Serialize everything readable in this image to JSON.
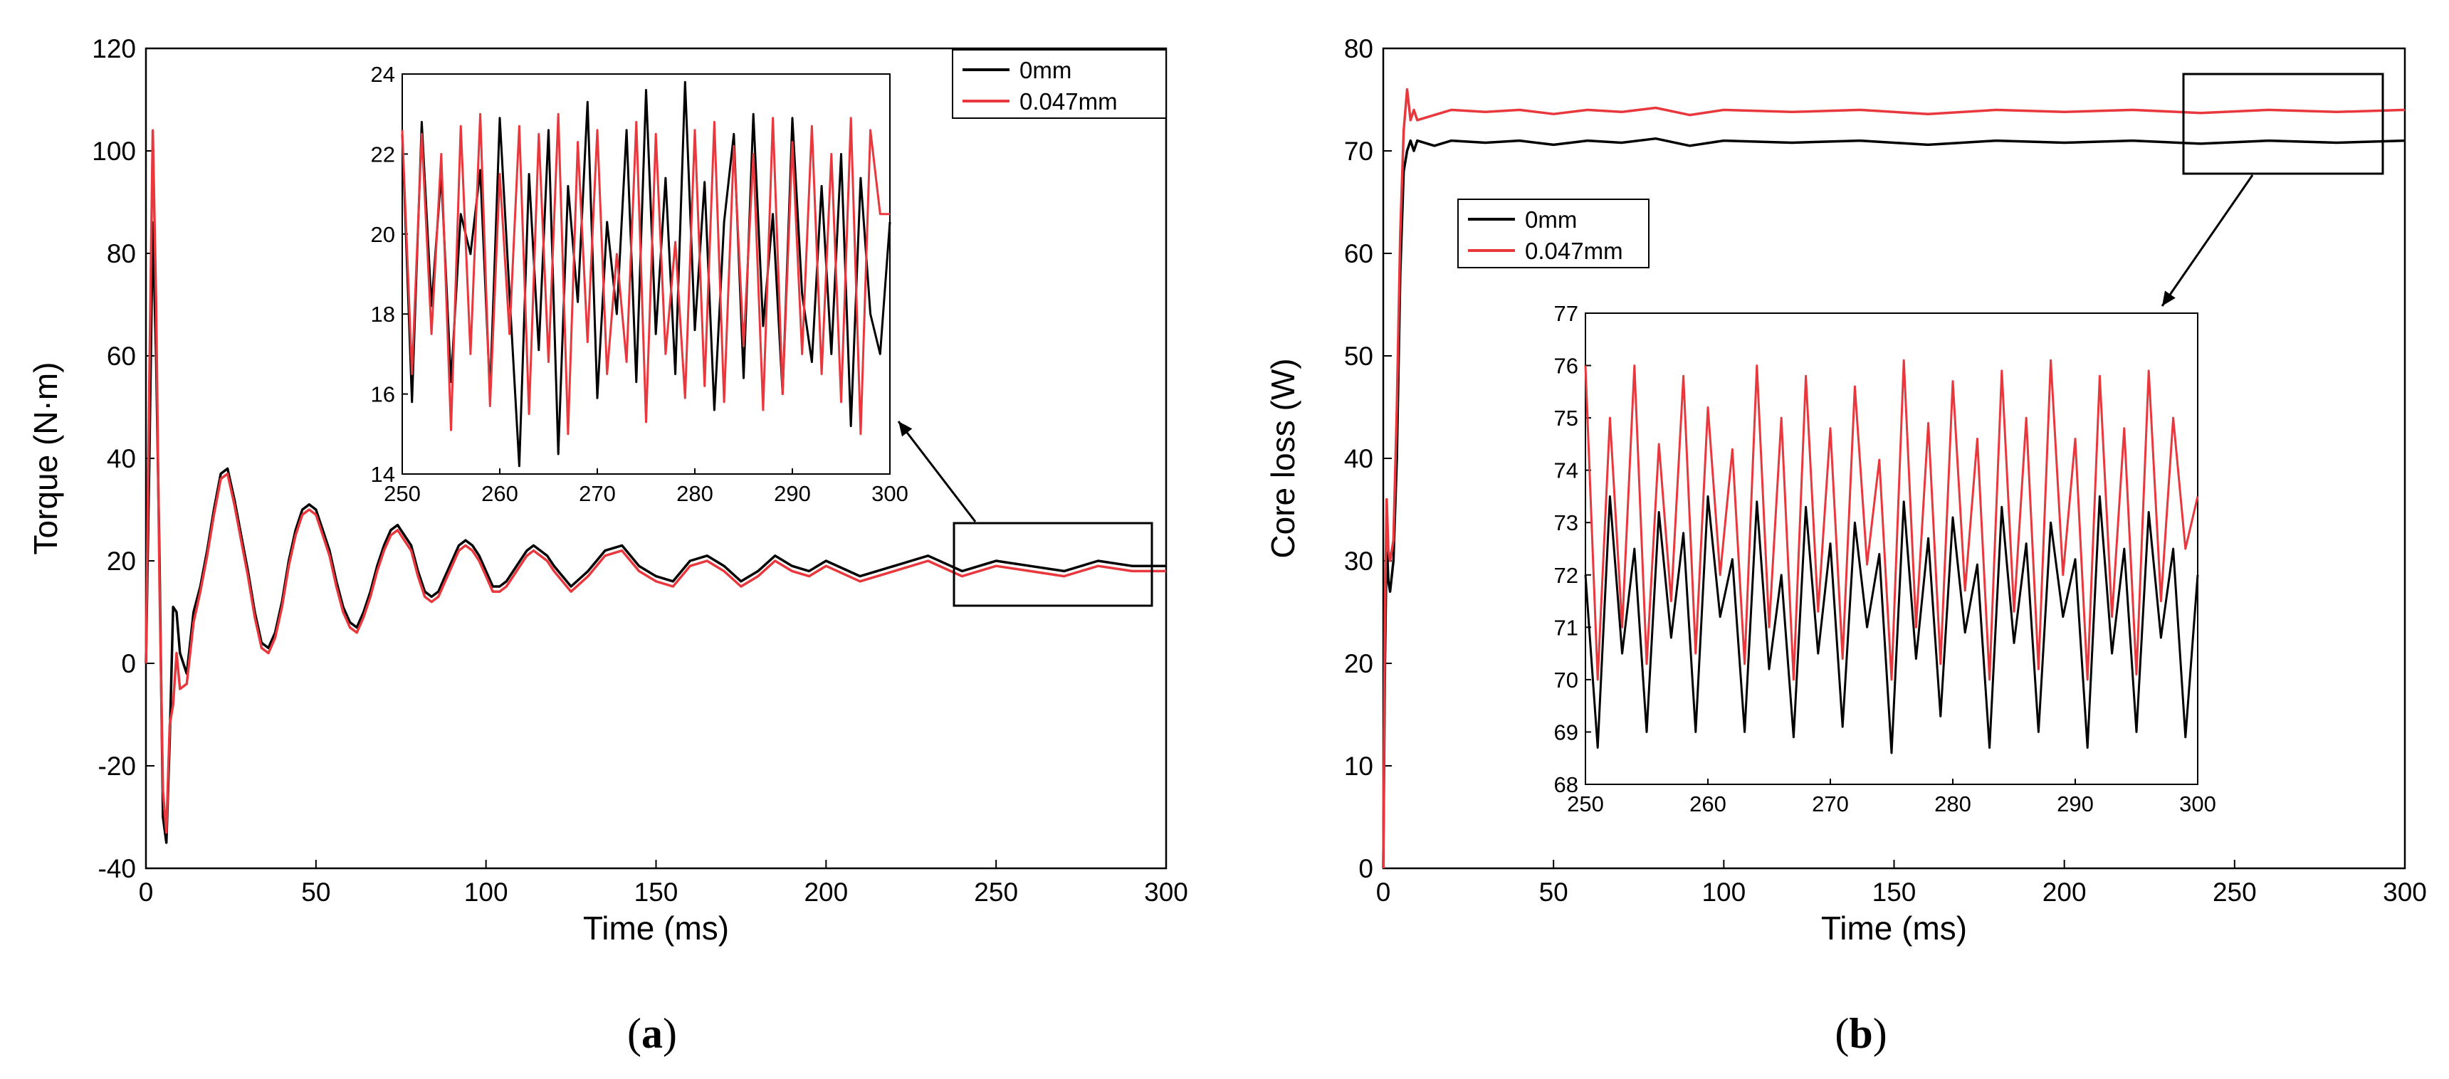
{
  "colors": {
    "series_0mm": "#000000",
    "series_0047mm": "#e8383d"
  },
  "chart_data": [
    {
      "type": "line",
      "panel": "a",
      "caption_open": "(",
      "caption_letter": "a",
      "caption_close": ")",
      "xlabel": "Time (ms)",
      "ylabel": "Torque (N·m)",
      "xlim": [
        0,
        300
      ],
      "ylim": [
        -40,
        120
      ],
      "xticks": [
        0,
        50,
        100,
        150,
        200,
        250,
        300
      ],
      "yticks": [
        -40,
        -20,
        0,
        20,
        40,
        60,
        80,
        100,
        120
      ],
      "legend": {
        "placement": "top-right",
        "entries": [
          "0mm",
          "0.047mm"
        ]
      },
      "series": [
        {
          "name": "0mm",
          "x": [
            0,
            1,
            2,
            3,
            4,
            5,
            6,
            7,
            8,
            9,
            10,
            12,
            14,
            16,
            18,
            20,
            22,
            24,
            26,
            28,
            30,
            32,
            34,
            36,
            38,
            40,
            42,
            44,
            46,
            48,
            50,
            52,
            54,
            56,
            58,
            60,
            62,
            64,
            66,
            68,
            70,
            72,
            74,
            76,
            78,
            80,
            82,
            84,
            86,
            88,
            90,
            92,
            94,
            96,
            98,
            100,
            102,
            104,
            106,
            108,
            110,
            112,
            114,
            116,
            118,
            120,
            125,
            130,
            135,
            140,
            145,
            150,
            155,
            160,
            165,
            170,
            175,
            180,
            185,
            190,
            195,
            200,
            210,
            220,
            230,
            240,
            250,
            260,
            270,
            280,
            290,
            300
          ],
          "y": [
            0,
            40,
            86,
            60,
            20,
            -30,
            -35,
            -15,
            11,
            10,
            2,
            -2,
            10,
            15,
            22,
            30,
            37,
            38,
            32,
            25,
            18,
            10,
            4,
            3,
            6,
            12,
            20,
            26,
            30,
            31,
            30,
            26,
            22,
            16,
            11,
            8,
            7,
            10,
            14,
            19,
            23,
            26,
            27,
            25,
            23,
            18,
            14,
            13,
            14,
            17,
            20,
            23,
            24,
            23,
            21,
            18,
            15,
            15,
            16,
            18,
            20,
            22,
            23,
            22,
            21,
            19,
            15,
            18,
            22,
            23,
            19,
            17,
            16,
            20,
            21,
            19,
            16,
            18,
            21,
            19,
            18,
            20,
            17,
            19,
            21,
            18,
            20,
            19,
            18,
            20,
            19,
            19
          ]
        },
        {
          "name": "0.047mm",
          "x": [
            0,
            1,
            2,
            3,
            4,
            5,
            6,
            7,
            8,
            9,
            10,
            12,
            14,
            16,
            18,
            20,
            22,
            24,
            26,
            28,
            30,
            32,
            34,
            36,
            38,
            40,
            42,
            44,
            46,
            48,
            50,
            52,
            54,
            56,
            58,
            60,
            62,
            64,
            66,
            68,
            70,
            72,
            74,
            76,
            78,
            80,
            82,
            84,
            86,
            88,
            90,
            92,
            94,
            96,
            98,
            100,
            102,
            104,
            106,
            108,
            110,
            112,
            114,
            116,
            118,
            120,
            125,
            130,
            135,
            140,
            145,
            150,
            155,
            160,
            165,
            170,
            175,
            180,
            185,
            190,
            195,
            200,
            210,
            220,
            230,
            240,
            250,
            260,
            270,
            280,
            290,
            300
          ],
          "y": [
            0,
            55,
            104,
            70,
            15,
            -25,
            -33,
            -12,
            -8,
            2,
            -5,
            -4,
            8,
            14,
            21,
            29,
            36,
            37,
            31,
            24,
            17,
            9,
            3,
            2,
            5,
            11,
            19,
            25,
            29,
            30,
            29,
            25,
            21,
            15,
            10,
            7,
            6,
            9,
            13,
            18,
            22,
            25,
            26,
            24,
            22,
            17,
            13,
            12,
            13,
            16,
            19,
            22,
            23,
            22,
            20,
            17,
            14,
            14,
            15,
            17,
            19,
            21,
            22,
            21,
            20,
            18,
            14,
            17,
            21,
            22,
            18,
            16,
            15,
            19,
            20,
            18,
            15,
            17,
            20,
            18,
            17,
            19,
            16,
            18,
            20,
            17,
            19,
            18,
            17,
            19,
            18,
            18
          ]
        }
      ],
      "inset": {
        "xlim": [
          250,
          300
        ],
        "ylim": [
          14,
          24
        ],
        "xticks": [
          250,
          260,
          270,
          280,
          290,
          300
        ],
        "yticks": [
          14,
          16,
          18,
          20,
          22,
          24
        ],
        "series": [
          {
            "name": "0mm",
            "x": [
              250,
              251,
              252,
              253,
              254,
              255,
              256,
              257,
              258,
              259,
              260,
              261,
              262,
              263,
              264,
              265,
              266,
              267,
              268,
              269,
              270,
              271,
              272,
              273,
              274,
              275,
              276,
              277,
              278,
              279,
              280,
              281,
              282,
              283,
              284,
              285,
              286,
              287,
              288,
              289,
              290,
              291,
              292,
              293,
              294,
              295,
              296,
              297,
              298,
              299,
              300
            ],
            "y": [
              22.5,
              15.8,
              22.8,
              18.2,
              21.5,
              16.3,
              20.5,
              19.5,
              21.6,
              16.0,
              22.9,
              18.5,
              14.2,
              21.5,
              17.1,
              22.6,
              14.5,
              21.2,
              18.3,
              23.3,
              15.9,
              20.3,
              18.0,
              22.6,
              16.3,
              23.6,
              17.5,
              21.4,
              16.5,
              23.8,
              17.6,
              21.3,
              15.6,
              20.3,
              22.5,
              16.4,
              23.0,
              17.7,
              20.5,
              16.0,
              22.9,
              18.5,
              16.8,
              21.2,
              17.0,
              22.0,
              15.2,
              21.4,
              18.0,
              17.0,
              20.3
            ]
          },
          {
            "name": "0.047mm",
            "x": [
              250,
              251,
              252,
              253,
              254,
              255,
              256,
              257,
              258,
              259,
              260,
              261,
              262,
              263,
              264,
              265,
              266,
              267,
              268,
              269,
              270,
              271,
              272,
              273,
              274,
              275,
              276,
              277,
              278,
              279,
              280,
              281,
              282,
              283,
              284,
              285,
              286,
              287,
              288,
              289,
              290,
              291,
              292,
              293,
              294,
              295,
              296,
              297,
              298,
              299,
              300
            ],
            "y": [
              22.6,
              16.5,
              22.5,
              17.5,
              22.0,
              15.1,
              22.7,
              17.0,
              23.0,
              15.7,
              21.5,
              17.5,
              22.7,
              15.5,
              22.5,
              16.8,
              23.0,
              15.0,
              22.3,
              17.3,
              22.6,
              16.5,
              19.5,
              16.8,
              22.8,
              15.3,
              22.5,
              17.0,
              19.8,
              15.9,
              22.6,
              16.2,
              22.8,
              15.8,
              22.2,
              17.2,
              22.0,
              15.6,
              22.9,
              16.0,
              22.3,
              17.0,
              22.7,
              16.5,
              22.0,
              15.8,
              22.9,
              15.0,
              22.6,
              20.5,
              20.5
            ]
          }
        ]
      }
    },
    {
      "type": "line",
      "panel": "b",
      "caption_open": "(",
      "caption_letter": "b",
      "caption_close": ")",
      "xlabel": "Time (ms)",
      "ylabel": "Core loss (W)",
      "xlim": [
        0,
        300
      ],
      "ylim": [
        0,
        80
      ],
      "xticks": [
        0,
        50,
        100,
        150,
        200,
        250,
        300
      ],
      "yticks": [
        0,
        10,
        20,
        30,
        40,
        50,
        60,
        70,
        80
      ],
      "legend": {
        "placement": "top-left",
        "entries": [
          "0mm",
          "0.047mm"
        ]
      },
      "series": [
        {
          "name": "0mm",
          "x": [
            0,
            0.5,
            1,
            1.5,
            2,
            3,
            4,
            5,
            6,
            7,
            8,
            9,
            10,
            15,
            20,
            30,
            40,
            50,
            60,
            70,
            80,
            90,
            100,
            120,
            140,
            160,
            180,
            200,
            220,
            240,
            260,
            280,
            300
          ],
          "y": [
            0,
            20,
            32,
            28,
            27,
            30,
            40,
            58,
            68,
            70,
            71,
            70,
            71,
            70.5,
            71,
            70.8,
            71,
            70.6,
            71,
            70.8,
            71.2,
            70.5,
            71,
            70.8,
            71,
            70.6,
            71,
            70.8,
            71,
            70.7,
            71,
            70.8,
            71
          ]
        },
        {
          "name": "0.047mm",
          "x": [
            0,
            0.5,
            1,
            1.5,
            2,
            3,
            4,
            5,
            6,
            7,
            8,
            9,
            10,
            15,
            20,
            30,
            40,
            50,
            60,
            70,
            80,
            90,
            100,
            120,
            140,
            160,
            180,
            200,
            220,
            240,
            260,
            280,
            300
          ],
          "y": [
            0,
            25,
            36,
            31,
            30,
            32,
            45,
            62,
            72,
            76,
            73,
            74,
            73,
            73.5,
            74,
            73.8,
            74,
            73.6,
            74,
            73.8,
            74.2,
            73.5,
            74,
            73.8,
            74,
            73.6,
            74,
            73.8,
            74,
            73.7,
            74,
            73.8,
            74
          ]
        }
      ],
      "inset": {
        "xlim": [
          250,
          300
        ],
        "ylim": [
          68,
          77
        ],
        "xticks": [
          250,
          260,
          270,
          280,
          290,
          300
        ],
        "yticks": [
          68,
          69,
          70,
          71,
          72,
          73,
          74,
          75,
          76,
          77
        ],
        "series": [
          {
            "name": "0mm",
            "x": [
              250,
              251,
              252,
              253,
              254,
              255,
              256,
              257,
              258,
              259,
              260,
              261,
              262,
              263,
              264,
              265,
              266,
              267,
              268,
              269,
              270,
              271,
              272,
              273,
              274,
              275,
              276,
              277,
              278,
              279,
              280,
              281,
              282,
              283,
              284,
              285,
              286,
              287,
              288,
              289,
              290,
              291,
              292,
              293,
              294,
              295,
              296,
              297,
              298,
              299,
              300
            ],
            "y": [
              72.0,
              68.7,
              73.5,
              70.5,
              72.5,
              69.0,
              73.2,
              70.8,
              72.8,
              69.0,
              73.5,
              71.2,
              72.3,
              69.0,
              73.4,
              70.2,
              72.0,
              68.9,
              73.3,
              70.5,
              72.6,
              69.1,
              73.0,
              71.0,
              72.4,
              68.6,
              73.4,
              70.4,
              72.7,
              69.3,
              73.1,
              70.9,
              72.2,
              68.7,
              73.3,
              70.7,
              72.6,
              69.0,
              73.0,
              71.2,
              72.3,
              68.7,
              73.5,
              70.5,
              72.5,
              69.0,
              73.2,
              70.8,
              72.5,
              68.9,
              72.0
            ]
          },
          {
            "name": "0.047mm",
            "x": [
              250,
              251,
              252,
              253,
              254,
              255,
              256,
              257,
              258,
              259,
              260,
              261,
              262,
              263,
              264,
              265,
              266,
              267,
              268,
              269,
              270,
              271,
              272,
              273,
              274,
              275,
              276,
              277,
              278,
              279,
              280,
              281,
              282,
              283,
              284,
              285,
              286,
              287,
              288,
              289,
              290,
              291,
              292,
              293,
              294,
              295,
              296,
              297,
              298,
              299,
              300
            ],
            "y": [
              76.0,
              70.0,
              75.0,
              71.0,
              76.0,
              70.3,
              74.5,
              71.5,
              75.8,
              70.5,
              75.2,
              72.0,
              74.4,
              70.3,
              76.0,
              71.0,
              75.0,
              70.0,
              75.8,
              71.3,
              74.8,
              70.4,
              75.6,
              72.2,
              74.2,
              70.0,
              76.1,
              71.0,
              74.9,
              70.3,
              75.7,
              71.7,
              74.6,
              70.0,
              75.9,
              71.3,
              75.0,
              70.2,
              76.1,
              72.0,
              74.6,
              70.0,
              75.8,
              71.2,
              74.8,
              70.1,
              75.9,
              71.5,
              75.0,
              72.5,
              73.5
            ]
          }
        ]
      }
    }
  ]
}
